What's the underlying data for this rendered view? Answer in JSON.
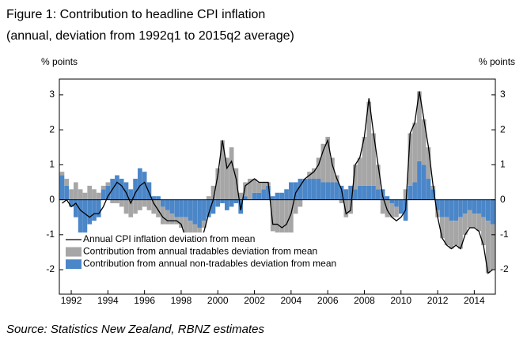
{
  "chart_data": {
    "type": "bar_line",
    "title": "Figure 1: Contribution to headline CPI inflation",
    "subtitle": "(annual, deviation from 1992q1 to 2015q2 average)",
    "y_label": "% points",
    "y2_label": "% points",
    "source": "Source: Statistics New Zealand, RBNZ estimates",
    "legend": "lower left",
    "stacked": true,
    "x": [
      1991.5,
      1991.75,
      1992,
      1992.25,
      1992.5,
      1992.75,
      1993,
      1993.25,
      1993.5,
      1993.75,
      1994,
      1994.25,
      1994.5,
      1994.75,
      1995,
      1995.25,
      1995.5,
      1995.75,
      1996,
      1996.25,
      1996.5,
      1996.75,
      1997,
      1997.25,
      1997.5,
      1997.75,
      1998,
      1998.25,
      1998.5,
      1998.75,
      1999,
      1999.25,
      1999.5,
      1999.75,
      2000,
      2000.25,
      2000.5,
      2000.75,
      2001,
      2001.25,
      2001.5,
      2001.75,
      2002,
      2002.25,
      2002.5,
      2002.75,
      2003,
      2003.25,
      2003.5,
      2003.75,
      2004,
      2004.25,
      2004.5,
      2004.75,
      2005,
      2005.25,
      2005.5,
      2005.75,
      2006,
      2006.25,
      2006.5,
      2006.75,
      2007,
      2007.25,
      2007.5,
      2007.75,
      2008,
      2008.25,
      2008.5,
      2008.75,
      2009,
      2009.25,
      2009.5,
      2009.75,
      2010,
      2010.25,
      2010.5,
      2010.75,
      2011,
      2011.25,
      2011.5,
      2011.75,
      2012,
      2012.25,
      2012.5,
      2012.75,
      2013,
      2013.25,
      2013.5,
      2013.75,
      2014,
      2014.25,
      2014.5,
      2014.75,
      2015
    ],
    "series": [
      {
        "name": "Contribution from annual non-tradables deviation from mean",
        "kind": "bar",
        "color": "#4a86c8",
        "values": [
          0.7,
          0.4,
          -0.2,
          -0.5,
          -1.2,
          -1.0,
          -0.7,
          -0.6,
          -0.5,
          0.3,
          0.4,
          0.6,
          0.7,
          0.6,
          0.5,
          0.3,
          0.6,
          0.9,
          0.8,
          0.5,
          0.1,
          0.1,
          -0.2,
          -0.3,
          -0.4,
          -0.5,
          -0.5,
          -0.5,
          -0.6,
          -0.7,
          -0.8,
          -0.6,
          -0.5,
          -0.4,
          -0.2,
          -0.1,
          -0.3,
          -0.2,
          -0.1,
          -0.4,
          0.1,
          0.0,
          0.2,
          0.2,
          0.3,
          0.4,
          0.1,
          0.2,
          0.2,
          0.3,
          0.5,
          0.5,
          0.6,
          0.6,
          0.6,
          0.6,
          0.6,
          0.5,
          0.5,
          0.5,
          0.5,
          0.4,
          0.3,
          0.4,
          0.3,
          0.4,
          0.4,
          0.4,
          0.4,
          0.3,
          0.3,
          0.1,
          -0.1,
          -0.2,
          -0.4,
          -0.6,
          0.4,
          0.5,
          1.1,
          1.0,
          0.6,
          0.3,
          -0.3,
          -0.5,
          -0.5,
          -0.6,
          -0.6,
          -0.5,
          -0.4,
          -0.3,
          -0.4,
          -0.4,
          -0.5,
          -0.6,
          -0.7
        ]
      },
      {
        "name": "Contribution from annual tradables deviation from mean",
        "kind": "bar",
        "color": "#a6a6a6",
        "values": [
          0.1,
          0.2,
          0.3,
          0.5,
          0.3,
          0.2,
          0.4,
          0.3,
          0.2,
          0.1,
          0.1,
          -0.1,
          -0.1,
          -0.2,
          -0.4,
          -0.5,
          -0.4,
          -0.3,
          -0.2,
          -0.3,
          -0.4,
          -0.5,
          -0.5,
          -0.4,
          -0.3,
          -0.2,
          -0.3,
          -0.6,
          -0.5,
          -0.4,
          -0.3,
          -0.2,
          0.1,
          0.4,
          0.9,
          1.7,
          1.2,
          1.5,
          0.9,
          0.2,
          0.4,
          0.6,
          0.4,
          0.3,
          0.2,
          0.1,
          -0.9,
          -1.0,
          -1.2,
          -1.2,
          -1.0,
          -0.4,
          -0.2,
          0.0,
          0.2,
          0.3,
          0.6,
          1.1,
          1.3,
          0.7,
          0.2,
          -0.1,
          -0.5,
          -0.4,
          0.7,
          0.8,
          1.4,
          2.4,
          1.5,
          0.7,
          -0.4,
          -0.5,
          -0.4,
          -0.3,
          0.0,
          0.3,
          1.5,
          1.7,
          2.0,
          1.3,
          0.9,
          0.1,
          -0.2,
          -0.6,
          -0.8,
          -0.8,
          -0.7,
          -0.9,
          -0.6,
          -0.5,
          -0.4,
          -0.5,
          -0.8,
          -1.5,
          -1.3
        ]
      },
      {
        "name": "Annual CPI inflation deviation from mean",
        "kind": "line",
        "color": "#000000",
        "values": [
          -0.1,
          0.0,
          -0.2,
          -0.1,
          -0.3,
          -0.4,
          -0.5,
          -0.4,
          -0.4,
          -0.2,
          0.1,
          0.3,
          0.5,
          0.4,
          0.2,
          -0.1,
          0.2,
          0.4,
          0.5,
          0.2,
          -0.1,
          -0.3,
          -0.5,
          -0.6,
          -0.6,
          -0.6,
          -0.7,
          -1.1,
          -1.0,
          -1.2,
          -1.2,
          -0.9,
          -0.4,
          0.0,
          0.7,
          1.7,
          0.9,
          1.1,
          0.6,
          -0.3,
          0.4,
          0.5,
          0.6,
          0.5,
          0.5,
          0.5,
          -0.7,
          -0.7,
          -0.8,
          -0.7,
          -0.4,
          0.2,
          0.4,
          0.6,
          0.7,
          0.8,
          1.0,
          1.4,
          1.7,
          1.0,
          0.6,
          0.3,
          -0.4,
          -0.3,
          1.0,
          1.2,
          1.8,
          2.9,
          1.9,
          1.0,
          0.1,
          -0.3,
          -0.5,
          -0.6,
          -0.5,
          -0.3,
          1.9,
          2.2,
          3.1,
          2.3,
          1.5,
          0.4,
          -0.5,
          -1.1,
          -1.3,
          -1.4,
          -1.3,
          -1.4,
          -1.0,
          -0.8,
          -0.8,
          -0.9,
          -1.3,
          -2.1,
          -2.0
        ]
      }
    ],
    "xlim": [
      1991.35,
      2015.15
    ],
    "xticks": [
      1992,
      1994,
      1996,
      1998,
      2000,
      2002,
      2004,
      2006,
      2008,
      2010,
      2012,
      2014
    ],
    "ylim": [
      -2.7,
      3.45
    ],
    "yticks": [
      -2,
      -1,
      0,
      1,
      2,
      3
    ],
    "zero_line": true
  }
}
